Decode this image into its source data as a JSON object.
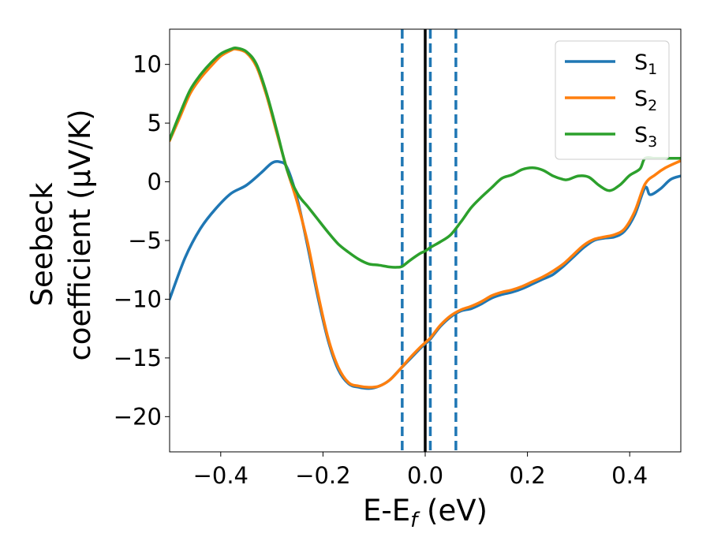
{
  "chart_data": {
    "type": "line",
    "xlabel": "E-E",
    "xlabel_sub": "f",
    "xlabel_unit": " (eV)",
    "ylabel_line1": "Seebeck",
    "ylabel_line2": "coefficient  (μV/K)",
    "xlim": [
      -0.5,
      0.5
    ],
    "ylim": [
      -23,
      13
    ],
    "xticks": [
      -0.4,
      -0.2,
      0.0,
      0.2,
      0.4
    ],
    "xtick_labels": [
      "−0.4",
      "−0.2",
      "0.0",
      "0.2",
      "0.4"
    ],
    "yticks": [
      10,
      5,
      0,
      -5,
      -10,
      -15,
      -20
    ],
    "ytick_labels": [
      "10",
      "5",
      "0",
      "−5",
      "−10",
      "−15",
      "−20"
    ],
    "legend_position": "top-right",
    "vertical_lines": [
      {
        "x": 0.0,
        "style": "solid",
        "color": "#000000"
      },
      {
        "x": -0.045,
        "style": "dashed",
        "color": "#1f77b4"
      },
      {
        "x": 0.01,
        "style": "dashed",
        "color": "#1f77b4"
      },
      {
        "x": 0.06,
        "style": "dashed",
        "color": "#1f77b4"
      }
    ],
    "series": [
      {
        "name": "S",
        "sub": "1",
        "color": "#1f77b4",
        "x": [
          -0.5,
          -0.47,
          -0.44,
          -0.41,
          -0.38,
          -0.35,
          -0.32,
          -0.3,
          -0.285,
          -0.27,
          -0.25,
          -0.23,
          -0.21,
          -0.19,
          -0.17,
          -0.15,
          -0.13,
          -0.11,
          -0.09,
          -0.07,
          -0.05,
          -0.03,
          -0.01,
          0.0,
          0.01,
          0.03,
          0.05,
          0.07,
          0.09,
          0.11,
          0.13,
          0.15,
          0.17,
          0.19,
          0.21,
          0.23,
          0.25,
          0.27,
          0.29,
          0.31,
          0.33,
          0.35,
          0.37,
          0.39,
          0.41,
          0.43,
          0.44,
          0.46,
          0.48,
          0.5
        ],
        "y": [
          -10,
          -6.5,
          -4,
          -2.3,
          -1,
          -0.3,
          0.8,
          1.6,
          1.7,
          1.2,
          -1.5,
          -5.5,
          -9.8,
          -13.5,
          -16,
          -17.2,
          -17.5,
          -17.6,
          -17.4,
          -16.9,
          -16,
          -15.1,
          -14.2,
          -13.8,
          -13.4,
          -12.3,
          -11.5,
          -11,
          -10.8,
          -10.4,
          -9.9,
          -9.6,
          -9.4,
          -9.1,
          -8.7,
          -8.3,
          -7.9,
          -7.2,
          -6.4,
          -5.6,
          -5,
          -4.8,
          -4.7,
          -4.2,
          -2.8,
          -0.5,
          -1.1,
          -0.6,
          0.2,
          0.5
        ]
      },
      {
        "name": "S",
        "sub": "2",
        "color": "#ff7f0e",
        "x": [
          -0.5,
          -0.48,
          -0.46,
          -0.44,
          -0.42,
          -0.4,
          -0.38,
          -0.37,
          -0.35,
          -0.33,
          -0.31,
          -0.29,
          -0.27,
          -0.25,
          -0.23,
          -0.21,
          -0.19,
          -0.17,
          -0.15,
          -0.13,
          -0.11,
          -0.09,
          -0.07,
          -0.05,
          -0.03,
          -0.01,
          0.0,
          0.01,
          0.03,
          0.05,
          0.07,
          0.09,
          0.11,
          0.13,
          0.15,
          0.17,
          0.19,
          0.21,
          0.23,
          0.25,
          0.27,
          0.29,
          0.31,
          0.33,
          0.35,
          0.37,
          0.39,
          0.41,
          0.43,
          0.45,
          0.47,
          0.5
        ],
        "y": [
          3.5,
          5.5,
          7.5,
          8.8,
          9.8,
          10.7,
          11.2,
          11.3,
          11,
          9.8,
          7.3,
          4.1,
          1,
          -1.8,
          -5.2,
          -9.5,
          -13.3,
          -15.8,
          -17.1,
          -17.4,
          -17.5,
          -17.4,
          -16.9,
          -16,
          -15,
          -14.1,
          -13.7,
          -13.3,
          -12.2,
          -11.4,
          -10.9,
          -10.6,
          -10.2,
          -9.7,
          -9.4,
          -9.2,
          -8.9,
          -8.5,
          -8.1,
          -7.6,
          -7,
          -6.2,
          -5.4,
          -4.9,
          -4.7,
          -4.5,
          -4,
          -2.5,
          -0.2,
          0.6,
          1.2,
          1.8
        ]
      },
      {
        "name": "S",
        "sub": "3",
        "color": "#2ca02c",
        "x": [
          -0.5,
          -0.48,
          -0.46,
          -0.44,
          -0.42,
          -0.4,
          -0.38,
          -0.37,
          -0.35,
          -0.33,
          -0.31,
          -0.29,
          -0.27,
          -0.25,
          -0.23,
          -0.21,
          -0.19,
          -0.17,
          -0.15,
          -0.13,
          -0.11,
          -0.09,
          -0.07,
          -0.055,
          -0.045,
          -0.03,
          -0.01,
          0.0,
          0.01,
          0.03,
          0.05,
          0.07,
          0.09,
          0.11,
          0.13,
          0.15,
          0.17,
          0.19,
          0.21,
          0.23,
          0.25,
          0.27,
          0.28,
          0.3,
          0.32,
          0.34,
          0.36,
          0.38,
          0.4,
          0.42,
          0.43,
          0.45,
          0.47,
          0.5
        ],
        "y": [
          3.6,
          5.8,
          7.8,
          9.1,
          10.1,
          10.9,
          11.3,
          11.4,
          11.1,
          10,
          7.5,
          4.3,
          1,
          -1,
          -2.1,
          -3.2,
          -4.3,
          -5.3,
          -6,
          -6.6,
          -7,
          -7.1,
          -7.25,
          -7.28,
          -7.2,
          -6.7,
          -6.1,
          -5.9,
          -5.6,
          -5.1,
          -4.5,
          -3.4,
          -2.2,
          -1.3,
          -0.5,
          0.3,
          0.6,
          1.05,
          1.2,
          1.0,
          0.5,
          0.2,
          0.2,
          0.5,
          0.4,
          -0.3,
          -0.75,
          -0.3,
          0.55,
          1.1,
          2.0,
          2.0,
          2.0,
          2.0
        ]
      }
    ]
  }
}
